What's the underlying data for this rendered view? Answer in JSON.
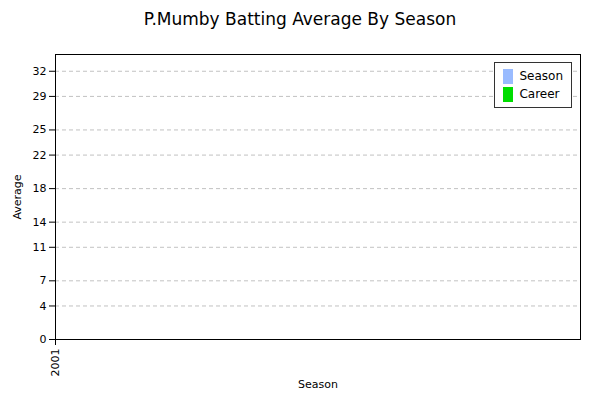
{
  "chart_data": {
    "type": "bar",
    "title": "P.Mumby Batting Average By Season",
    "xlabel": "Season",
    "ylabel": "Average",
    "x": [],
    "series": [
      {
        "name": "Season",
        "color": "#99bbff",
        "values": []
      },
      {
        "name": "Career",
        "color": "#00dd00",
        "values": []
      }
    ],
    "xlim": [
      2001,
      2012
    ],
    "xticks": [
      2001
    ],
    "ylim": [
      0,
      34
    ],
    "yticks": [
      0,
      4,
      7,
      11,
      14,
      18,
      22,
      25,
      29,
      32
    ],
    "grid": true,
    "legend": "upper right"
  }
}
